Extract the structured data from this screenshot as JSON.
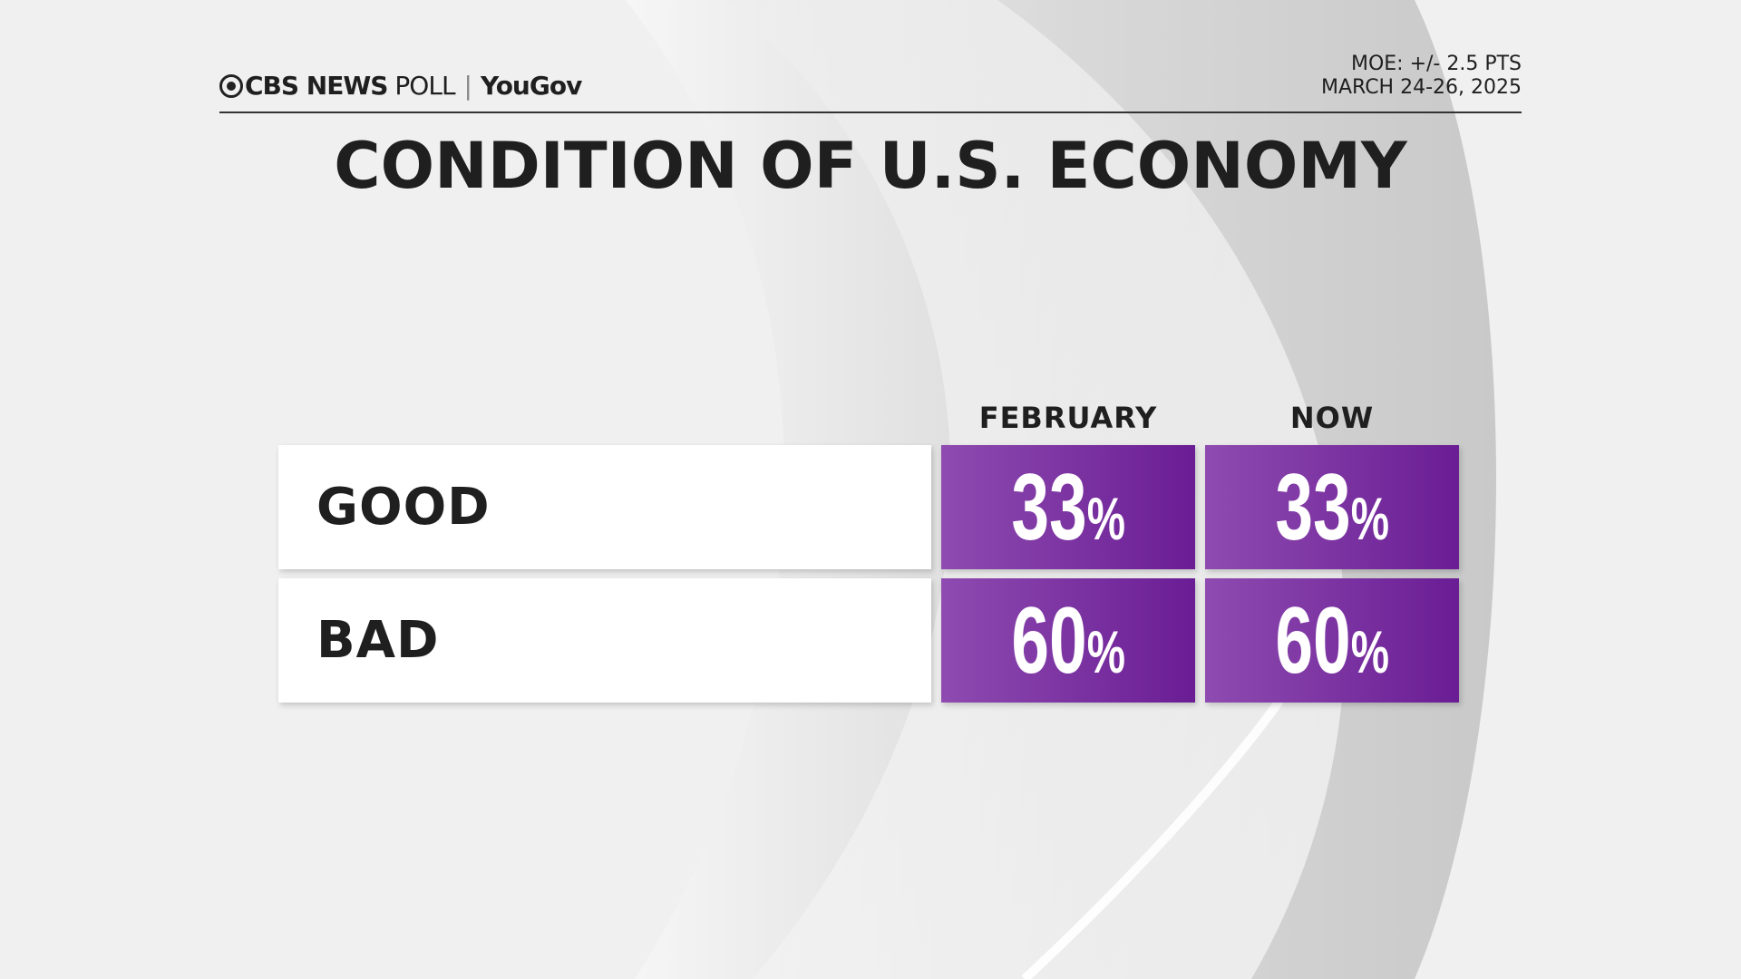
{
  "header": {
    "brand_cbs": "CBS NEWS",
    "brand_poll": "POLL",
    "separator": "|",
    "brand_partner": "YouGov",
    "moe": "MOE: +/- 2.5 PTS",
    "dates": "MARCH 24-26, 2025"
  },
  "title": "CONDITION OF U.S. ECONOMY",
  "colors": {
    "cell_start": "#8e4bb0",
    "cell_end": "#6a1d94",
    "background": "#efefef"
  },
  "chart_data": {
    "type": "table",
    "title": "CONDITION OF U.S. ECONOMY",
    "columns": [
      "FEBRUARY",
      "NOW"
    ],
    "rows": [
      {
        "label": "GOOD",
        "values": [
          "33",
          "33"
        ]
      },
      {
        "label": "BAD",
        "values": [
          "60",
          "60"
        ]
      }
    ],
    "unit": "%"
  }
}
